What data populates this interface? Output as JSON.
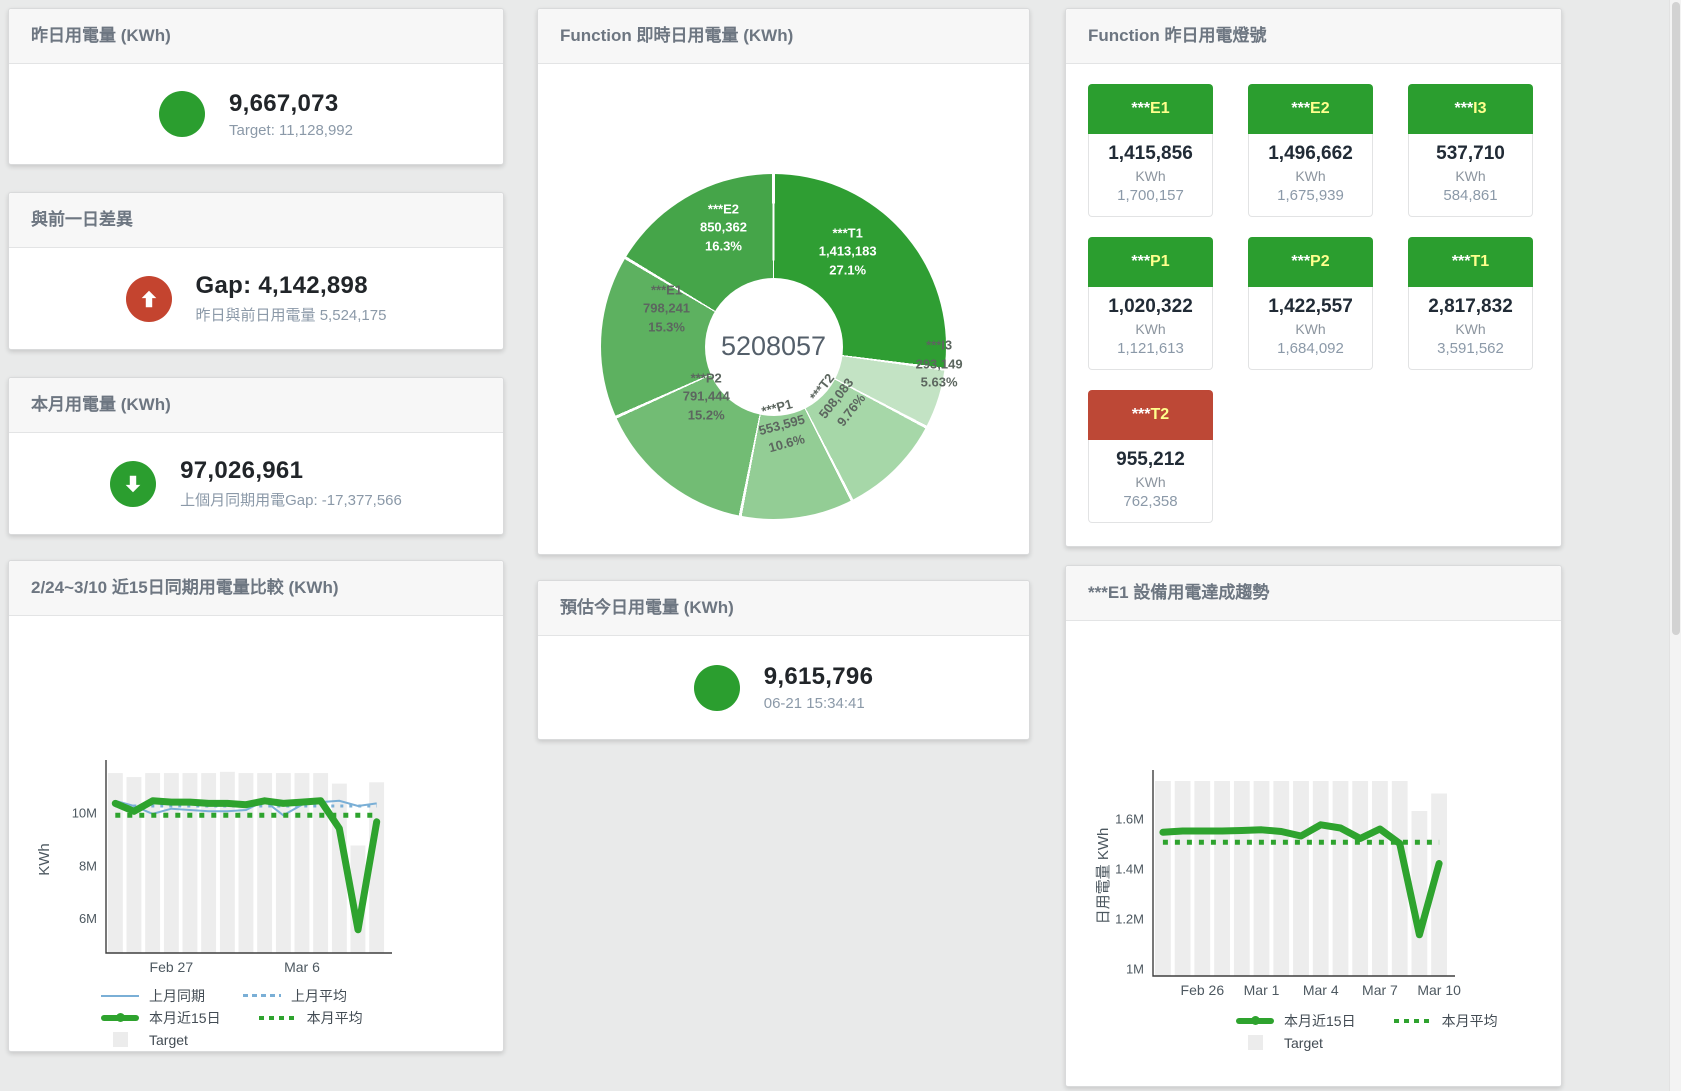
{
  "colors": {
    "green": "#2b9e2f",
    "red": "#c4442f",
    "line_green": "#2ea32e",
    "line_blue": "#7aafd6",
    "target_bar": "#ededed",
    "tile_code_yellow": "#ffff8d"
  },
  "cards": {
    "yesterday": {
      "title": "昨日用電量 (KWh)",
      "value": "9,667,073",
      "subtitle": "Target: 11,128,992"
    },
    "diff": {
      "title": "與前一日差異",
      "value": "Gap: 4,142,898",
      "subtitle": "昨日與前日用電量 5,524,175"
    },
    "month": {
      "title": "本月用電量 (KWh)",
      "value": "97,026,961",
      "subtitle": "上個月同期用電Gap: -17,377,566"
    },
    "estimate": {
      "title": "預估今日用電量 (KWh)",
      "value": "9,615,796",
      "subtitle": "06-21 15:34:41"
    },
    "realtime_title": "Function 即時日用電量 (KWh)",
    "lights_title": "Function 昨日用電燈號",
    "compare_title": "2/24~3/10 近15日同期用電量比較 (KWh)",
    "trend_title": "***E1 設備用電達成趨勢"
  },
  "lights": {
    "tiles": [
      {
        "prefix": "***",
        "code": "E1",
        "value": "1,415,856",
        "unit": "KWh",
        "target": "1,700,157",
        "status": "green"
      },
      {
        "prefix": "***",
        "code": "E2",
        "value": "1,496,662",
        "unit": "KWh",
        "target": "1,675,939",
        "status": "green"
      },
      {
        "prefix": "***",
        "code": "I3",
        "value": "537,710",
        "unit": "KWh",
        "target": "584,861",
        "status": "green"
      },
      {
        "prefix": "***",
        "code": "P1",
        "value": "1,020,322",
        "unit": "KWh",
        "target": "1,121,613",
        "status": "green"
      },
      {
        "prefix": "***",
        "code": "P2",
        "value": "1,422,557",
        "unit": "KWh",
        "target": "1,684,092",
        "status": "green"
      },
      {
        "prefix": "***",
        "code": "T1",
        "value": "2,817,832",
        "unit": "KWh",
        "target": "3,591,562",
        "status": "green"
      },
      {
        "prefix": "***",
        "code": "T2",
        "value": "955,212",
        "unit": "KWh",
        "target": "762,358",
        "status": "red"
      }
    ]
  },
  "chart_data": [
    {
      "id": "donut",
      "type": "pie",
      "title": "Function 即時日用電量 (KWh)",
      "center_label": "5208057",
      "slices": [
        {
          "name": "***T1",
          "value": 1413183,
          "value_label": "1,413,183",
          "pct": 27.1,
          "pct_label": "27.1%",
          "color": "#2f9e33"
        },
        {
          "name": "***I3",
          "value": 293149,
          "value_label": "293,149",
          "pct": 5.63,
          "pct_label": "5.63%",
          "color": "#c3e3c4"
        },
        {
          "name": "***T2",
          "value": 508083,
          "value_label": "508,083",
          "pct": 9.76,
          "pct_label": "9.76%",
          "color": "#a6d7a8"
        },
        {
          "name": "***P1",
          "value": 553595,
          "value_label": "553,595",
          "pct": 10.6,
          "pct_label": "10.6%",
          "color": "#93cd95"
        },
        {
          "name": "***P2",
          "value": 791444,
          "value_label": "791,444",
          "pct": 15.2,
          "pct_label": "15.2%",
          "color": "#72bc74"
        },
        {
          "name": "***E1",
          "value": 798241,
          "value_label": "798,241",
          "pct": 15.3,
          "pct_label": "15.3%",
          "color": "#5db160"
        },
        {
          "name": "***E2",
          "value": 850362,
          "value_label": "850,362",
          "pct": 16.3,
          "pct_label": "16.3%",
          "color": "#45a549"
        }
      ]
    },
    {
      "id": "compare15",
      "type": "line",
      "title": "2/24~3/10 近15日同期用電量比較 (KWh)",
      "ylabel": "KWh",
      "unit": "M KWh",
      "ylim": [
        4.67,
        11.77
      ],
      "yticks": [
        {
          "v": 6,
          "label": "6M"
        },
        {
          "v": 8,
          "label": "8M"
        },
        {
          "v": 10,
          "label": "10M"
        }
      ],
      "categories": [
        "2/24",
        "2/25",
        "2/26",
        "2/27",
        "2/28",
        "3/1",
        "3/2",
        "3/3",
        "3/4",
        "3/5",
        "3/6",
        "3/7",
        "3/8",
        "3/9",
        "3/10"
      ],
      "xticks": [
        {
          "i": 3,
          "label": "Feb 27"
        },
        {
          "i": 10,
          "label": "Mar 6"
        }
      ],
      "bar_name": "Target",
      "bar_color": "#ededed",
      "target_bars": [
        11.5,
        11.35,
        11.5,
        11.5,
        11.5,
        11.5,
        11.55,
        11.5,
        11.5,
        11.5,
        11.5,
        11.5,
        11.1,
        8.75,
        11.15
      ],
      "series": [
        {
          "name": "上月同期",
          "color": "#7aafd6",
          "width": 2,
          "values": [
            10.45,
            10.25,
            9.95,
            10.15,
            10.1,
            10.05,
            10.05,
            10.1,
            10.45,
            9.9,
            10.3,
            10.4,
            10.45,
            10.25,
            10.35
          ]
        },
        {
          "name": "上月平均",
          "color": "#7aafd6",
          "width": 3,
          "dash": "3 6",
          "const": 10.25
        },
        {
          "name": "本月近15日",
          "color": "#2ea32e",
          "width": 7,
          "round": true,
          "values": [
            10.35,
            10.05,
            10.45,
            10.4,
            10.4,
            10.35,
            10.35,
            10.3,
            10.45,
            10.35,
            10.4,
            10.45,
            9.4,
            5.55,
            9.65
          ]
        },
        {
          "name": "本月平均",
          "color": "#2ea32e",
          "width": 5,
          "dash": "5 7",
          "const": 9.9
        }
      ],
      "legend": [
        [
          {
            "label": "上月同期",
            "swatch": "blue-line"
          },
          {
            "label": "上月平均",
            "swatch": "blue-dash"
          }
        ],
        [
          {
            "label": "本月近15日",
            "swatch": "green-thick"
          },
          {
            "label": "本月平均",
            "swatch": "green-dot"
          }
        ],
        [
          {
            "label": "Target",
            "swatch": "target-box"
          }
        ]
      ]
    },
    {
      "id": "e1trend",
      "type": "line",
      "title": "***E1 設備用電達成趨勢",
      "ylabel": "日用電量 KWh",
      "unit": "M KWh",
      "ylim": [
        0.97,
        1.77
      ],
      "yticks": [
        {
          "v": 1,
          "label": "1M"
        },
        {
          "v": 1.2,
          "label": "1.2M"
        },
        {
          "v": 1.4,
          "label": "1.4M"
        },
        {
          "v": 1.6,
          "label": "1.6M"
        }
      ],
      "categories": [
        "2/24",
        "2/25",
        "2/26",
        "2/27",
        "2/28",
        "3/1",
        "3/2",
        "3/3",
        "3/4",
        "3/5",
        "3/6",
        "3/7",
        "3/8",
        "3/9",
        "3/10"
      ],
      "xticks": [
        {
          "i": 2,
          "label": "Feb 26"
        },
        {
          "i": 5,
          "label": "Mar 1"
        },
        {
          "i": 8,
          "label": "Mar 4"
        },
        {
          "i": 11,
          "label": "Mar 7"
        },
        {
          "i": 14,
          "label": "Mar 10"
        }
      ],
      "bar_name": "Target",
      "bar_color": "#ededed",
      "target_bars": [
        1.75,
        1.75,
        1.75,
        1.75,
        1.75,
        1.75,
        1.75,
        1.75,
        1.75,
        1.75,
        1.75,
        1.75,
        1.75,
        1.63,
        1.7
      ],
      "series": [
        {
          "name": "本月近15日",
          "color": "#2ea32e",
          "width": 7,
          "round": true,
          "values": [
            1.545,
            1.55,
            1.55,
            1.55,
            1.552,
            1.555,
            1.548,
            1.53,
            1.575,
            1.562,
            1.52,
            1.558,
            1.5,
            1.135,
            1.42
          ]
        },
        {
          "name": "本月平均",
          "color": "#2ea32e",
          "width": 5,
          "dash": "5 7",
          "const": 1.505
        }
      ],
      "legend": [
        [
          {
            "label": "本月近15日",
            "swatch": "green-thick"
          },
          {
            "label": "本月平均",
            "swatch": "green-dot"
          }
        ],
        [
          {
            "label": "Target",
            "swatch": "target-box"
          }
        ]
      ]
    }
  ]
}
